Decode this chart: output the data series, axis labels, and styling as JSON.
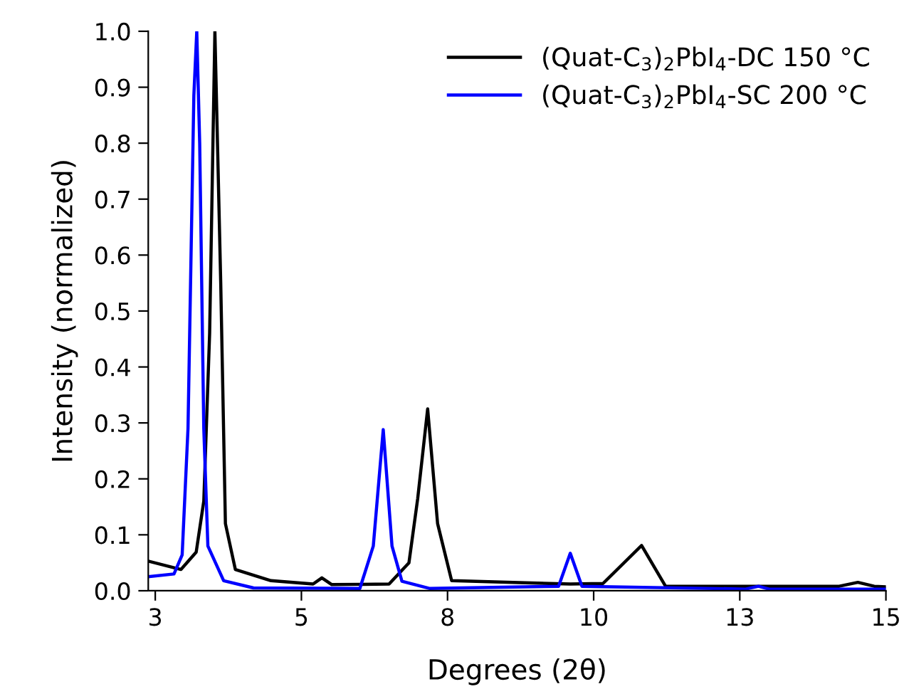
{
  "chart_data": {
    "type": "line",
    "xlabel": "Degrees (2θ)",
    "ylabel": "Intensity (normalized)",
    "xlim": [
      2.38,
      15
    ],
    "xticks": [
      {
        "value": 2.5,
        "label": "3"
      },
      5,
      {
        "value": 7.5,
        "label": "8"
      },
      10,
      {
        "value": 12.5,
        "label": "13"
      },
      15
    ],
    "ylim": [
      0,
      1
    ],
    "yticks": [
      {
        "value": 0,
        "label": "0.0"
      },
      0.1,
      0.2,
      0.3,
      0.4,
      0.5,
      0.6,
      0.7,
      0.8,
      0.9,
      {
        "value": 1,
        "label": "1.0"
      }
    ],
    "grid": false,
    "legend": "top right",
    "marker": "none",
    "line_style": "solid",
    "series": [
      {
        "name": "(Quat-C$_{3}$)$_{2}$PbI$_{4}$-DC 150 °C",
        "color": "#000000",
        "x": [
          2.38,
          2.94,
          3.2,
          3.33,
          3.43,
          3.52,
          3.62,
          3.7,
          3.87,
          4.48,
          5.2,
          5.35,
          5.52,
          6.5,
          6.84,
          6.99,
          7.16,
          7.33,
          7.57,
          9.6,
          10.16,
          10.82,
          11.23,
          14.2,
          14.52,
          14.8,
          15
        ],
        "values": [
          0.053,
          0.038,
          0.069,
          0.16,
          0.46,
          1.0,
          0.55,
          0.12,
          0.038,
          0.018,
          0.012,
          0.023,
          0.011,
          0.012,
          0.05,
          0.165,
          0.325,
          0.12,
          0.018,
          0.012,
          0.013,
          0.081,
          0.008,
          0.008,
          0.015,
          0.008,
          0.007
        ]
      },
      {
        "name": "(Quat-C$_{3}$)$_{2}$PbI$_{4}$-SC 200 °C",
        "color": "#0000ff",
        "x": [
          2.38,
          2.82,
          2.96,
          3.06,
          3.16,
          3.21,
          3.26,
          3.33,
          3.4,
          3.67,
          4.18,
          6.0,
          6.23,
          6.4,
          6.55,
          6.72,
          7.2,
          9.4,
          9.6,
          9.8,
          12.6,
          12.82,
          13.0,
          15
        ],
        "values": [
          0.025,
          0.03,
          0.064,
          0.29,
          0.885,
          1.0,
          0.8,
          0.29,
          0.08,
          0.018,
          0.005,
          0.004,
          0.08,
          0.288,
          0.08,
          0.017,
          0.004,
          0.008,
          0.067,
          0.008,
          0.003,
          0.008,
          0.003,
          0.003
        ]
      }
    ]
  }
}
